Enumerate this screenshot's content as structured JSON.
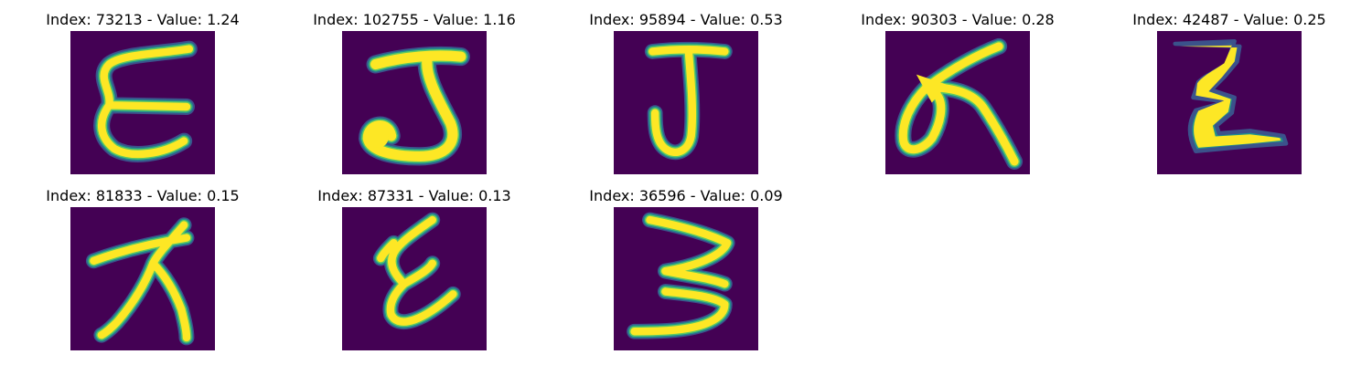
{
  "colors": {
    "background": "#440154",
    "stroke_core": "#fde725",
    "stroke_mid": "#5ec962",
    "stroke_edge": "#21918c",
    "stroke_outer": "#3b528b"
  },
  "panels": [
    {
      "title": "Index: 73213 - Value: 1.24",
      "glyph": "E"
    },
    {
      "title": "Index: 102755 - Value: 1.16",
      "glyph": "J"
    },
    {
      "title": "Index: 95894 - Value: 0.53",
      "glyph": "J"
    },
    {
      "title": "Index: 90303 - Value: 0.28",
      "glyph": "k"
    },
    {
      "title": "Index: 42487 - Value: 0.25",
      "glyph": "Z"
    },
    {
      "title": "Index: 81833 - Value: 0.15",
      "glyph": "x"
    },
    {
      "title": "Index: 87331 - Value: 0.13",
      "glyph": "E"
    },
    {
      "title": "Index: 36596 - Value: 0.09",
      "glyph": "3"
    }
  ]
}
